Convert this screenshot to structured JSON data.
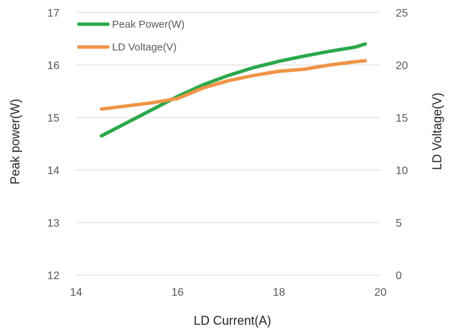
{
  "chart_data": {
    "type": "line",
    "xlabel": "LD Current(A)",
    "ylabel": "Peak power(W)",
    "y2label": "LD Voltage(V)",
    "xlim": [
      14,
      20
    ],
    "ylim": [
      12,
      17
    ],
    "y2lim": [
      0,
      25
    ],
    "xticks": [
      14,
      16,
      18,
      20
    ],
    "yticks": [
      12,
      13,
      14,
      15,
      16,
      17
    ],
    "y2ticks": [
      0,
      5,
      10,
      15,
      20,
      25
    ],
    "grid": true,
    "legend_position": "top-left",
    "series": [
      {
        "name": "Peak Power(W)",
        "axis": "left",
        "color": "#2ba84a",
        "x": [
          14.5,
          15.0,
          15.5,
          16.0,
          16.5,
          17.0,
          17.5,
          18.0,
          18.5,
          19.0,
          19.5,
          19.7
        ],
        "y": [
          14.65,
          14.9,
          15.15,
          15.4,
          15.62,
          15.8,
          15.95,
          16.07,
          16.17,
          16.26,
          16.34,
          16.4
        ]
      },
      {
        "name": "LD Voltage(V)",
        "axis": "right",
        "color": "#ef9446",
        "x": [
          14.5,
          15.0,
          15.5,
          16.0,
          16.5,
          17.0,
          17.5,
          18.0,
          18.5,
          19.0,
          19.5,
          19.7
        ],
        "y": [
          15.8,
          16.1,
          16.4,
          16.8,
          17.8,
          18.5,
          19.0,
          19.4,
          19.6,
          20.0,
          20.3,
          20.4
        ]
      }
    ]
  }
}
